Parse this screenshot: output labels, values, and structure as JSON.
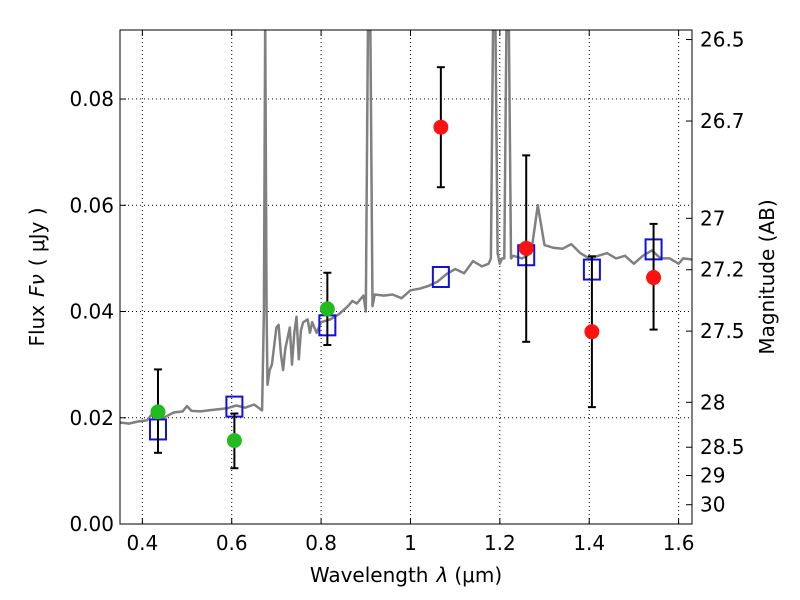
{
  "chart_data": {
    "type": "scatter",
    "xlabel_text": "Wavelength",
    "xlabel_symbol": "λ",
    "xlabel_unit": "(μm)",
    "ylabel_text": "Flux",
    "ylabel_symbol": "Fν",
    "ylabel_unit": "( μJy )",
    "y2label": "Magnitude (AB)",
    "xlim": [
      0.35,
      1.63
    ],
    "ylim": [
      0.0,
      0.093
    ],
    "grid": true,
    "x_ticks": [
      {
        "value": 0.4,
        "label": "0.4"
      },
      {
        "value": 0.6,
        "label": "0.6"
      },
      {
        "value": 0.8,
        "label": "0.8"
      },
      {
        "value": 1.0,
        "label": "1"
      },
      {
        "value": 1.2,
        "label": "1.2"
      },
      {
        "value": 1.4,
        "label": "1.4"
      },
      {
        "value": 1.6,
        "label": "1.6"
      }
    ],
    "y_ticks": [
      {
        "value": 0.0,
        "label": "0.00"
      },
      {
        "value": 0.02,
        "label": "0.02"
      },
      {
        "value": 0.04,
        "label": "0.04"
      },
      {
        "value": 0.06,
        "label": "0.06"
      },
      {
        "value": 0.08,
        "label": "0.08"
      }
    ],
    "y2_ticks": [
      {
        "mag": 26.5,
        "label": "26.5"
      },
      {
        "mag": 26.7,
        "label": "26.7"
      },
      {
        "mag": 27.0,
        "label": "27"
      },
      {
        "mag": 27.2,
        "label": "27.2"
      },
      {
        "mag": 27.5,
        "label": "27.5"
      },
      {
        "mag": 28.0,
        "label": "28"
      },
      {
        "mag": 28.5,
        "label": "28.5"
      },
      {
        "mag": 29.0,
        "label": "29"
      },
      {
        "mag": 30.0,
        "label": "30"
      }
    ],
    "series": [
      {
        "marker": "circle",
        "color": "#22bb22",
        "points": [
          {
            "x": 0.435,
            "y": 0.0211,
            "yerr_low": 0.0134,
            "yerr_high": 0.0291
          },
          {
            "x": 0.606,
            "y": 0.0157,
            "yerr_low": 0.0105,
            "yerr_high": 0.0208
          },
          {
            "x": 0.814,
            "y": 0.0405,
            "yerr_low": 0.0337,
            "yerr_high": 0.0473
          }
        ]
      },
      {
        "marker": "circle",
        "color": "#ff1111",
        "points": [
          {
            "x": 1.068,
            "y": 0.0747,
            "yerr_low": 0.0634,
            "yerr_high": 0.086
          },
          {
            "x": 1.259,
            "y": 0.0519,
            "yerr_low": 0.0343,
            "yerr_high": 0.0694
          },
          {
            "x": 1.406,
            "y": 0.0362,
            "yerr_low": 0.022,
            "yerr_high": 0.0504
          },
          {
            "x": 1.544,
            "y": 0.0464,
            "yerr_low": 0.0366,
            "yerr_high": 0.0565
          }
        ]
      },
      {
        "marker": "open-square",
        "color": "#1111dd",
        "points": [
          {
            "x": 0.435,
            "y": 0.0178
          },
          {
            "x": 0.606,
            "y": 0.0221
          },
          {
            "x": 0.814,
            "y": 0.0374
          },
          {
            "x": 1.068,
            "y": 0.0465
          },
          {
            "x": 1.259,
            "y": 0.0506
          },
          {
            "x": 1.406,
            "y": 0.0479
          },
          {
            "x": 1.544,
            "y": 0.0517
          }
        ]
      },
      {
        "marker": "line",
        "color": "#808080",
        "points": [
          [
            0.35,
            0.0191
          ],
          [
            0.37,
            0.0189
          ],
          [
            0.39,
            0.0193
          ],
          [
            0.41,
            0.0195
          ],
          [
            0.42,
            0.0205
          ],
          [
            0.43,
            0.02
          ],
          [
            0.45,
            0.0201
          ],
          [
            0.47,
            0.021
          ],
          [
            0.49,
            0.0212
          ],
          [
            0.5,
            0.0222
          ],
          [
            0.51,
            0.0213
          ],
          [
            0.53,
            0.0212
          ],
          [
            0.55,
            0.0214
          ],
          [
            0.57,
            0.0216
          ],
          [
            0.59,
            0.0218
          ],
          [
            0.61,
            0.0223
          ],
          [
            0.63,
            0.0219
          ],
          [
            0.65,
            0.0225
          ],
          [
            0.66,
            0.0219
          ],
          [
            0.668,
            0.0214
          ],
          [
            0.672,
            0.04
          ],
          [
            0.675,
            0.095
          ],
          [
            0.678,
            0.04
          ],
          [
            0.68,
            0.0262
          ],
          [
            0.685,
            0.029
          ],
          [
            0.69,
            0.03
          ],
          [
            0.7,
            0.037
          ],
          [
            0.705,
            0.0375
          ],
          [
            0.71,
            0.032
          ],
          [
            0.715,
            0.029
          ],
          [
            0.72,
            0.033
          ],
          [
            0.73,
            0.037
          ],
          [
            0.735,
            0.03
          ],
          [
            0.74,
            0.036
          ],
          [
            0.745,
            0.039
          ],
          [
            0.75,
            0.031
          ],
          [
            0.755,
            0.0365
          ],
          [
            0.76,
            0.038
          ],
          [
            0.77,
            0.0385
          ],
          [
            0.775,
            0.036
          ],
          [
            0.78,
            0.038
          ],
          [
            0.79,
            0.036
          ],
          [
            0.8,
            0.038
          ],
          [
            0.82,
            0.0385
          ],
          [
            0.84,
            0.0395
          ],
          [
            0.86,
            0.041
          ],
          [
            0.87,
            0.042
          ],
          [
            0.88,
            0.0415
          ],
          [
            0.895,
            0.043
          ],
          [
            0.9,
            0.04
          ],
          [
            0.905,
            0.095
          ],
          [
            0.91,
            0.095
          ],
          [
            0.915,
            0.041
          ],
          [
            0.92,
            0.0432
          ],
          [
            0.94,
            0.043
          ],
          [
            0.96,
            0.0432
          ],
          [
            0.98,
            0.0425
          ],
          [
            1.0,
            0.044
          ],
          [
            1.02,
            0.0443
          ],
          [
            1.04,
            0.0448
          ],
          [
            1.06,
            0.0456
          ],
          [
            1.08,
            0.047
          ],
          [
            1.1,
            0.048
          ],
          [
            1.12,
            0.0472
          ],
          [
            1.14,
            0.0495
          ],
          [
            1.16,
            0.0485
          ],
          [
            1.175,
            0.049
          ],
          [
            1.18,
            0.05
          ],
          [
            1.185,
            0.095
          ],
          [
            1.19,
            0.095
          ],
          [
            1.195,
            0.051
          ],
          [
            1.2,
            0.049
          ],
          [
            1.205,
            0.05
          ],
          [
            1.21,
            0.05
          ],
          [
            1.215,
            0.095
          ],
          [
            1.22,
            0.095
          ],
          [
            1.225,
            0.05
          ],
          [
            1.23,
            0.0505
          ],
          [
            1.25,
            0.05
          ],
          [
            1.27,
            0.051
          ],
          [
            1.285,
            0.06
          ],
          [
            1.3,
            0.0525
          ],
          [
            1.32,
            0.052
          ],
          [
            1.34,
            0.0518
          ],
          [
            1.36,
            0.0527
          ],
          [
            1.38,
            0.051
          ],
          [
            1.4,
            0.05
          ],
          [
            1.42,
            0.0505
          ],
          [
            1.44,
            0.051
          ],
          [
            1.46,
            0.05
          ],
          [
            1.48,
            0.0505
          ],
          [
            1.5,
            0.049
          ],
          [
            1.52,
            0.0505
          ],
          [
            1.54,
            0.0515
          ],
          [
            1.56,
            0.05
          ],
          [
            1.58,
            0.05
          ],
          [
            1.59,
            0.0495
          ],
          [
            1.6,
            0.049
          ],
          [
            1.61,
            0.05
          ],
          [
            1.63,
            0.0498
          ]
        ]
      }
    ]
  }
}
